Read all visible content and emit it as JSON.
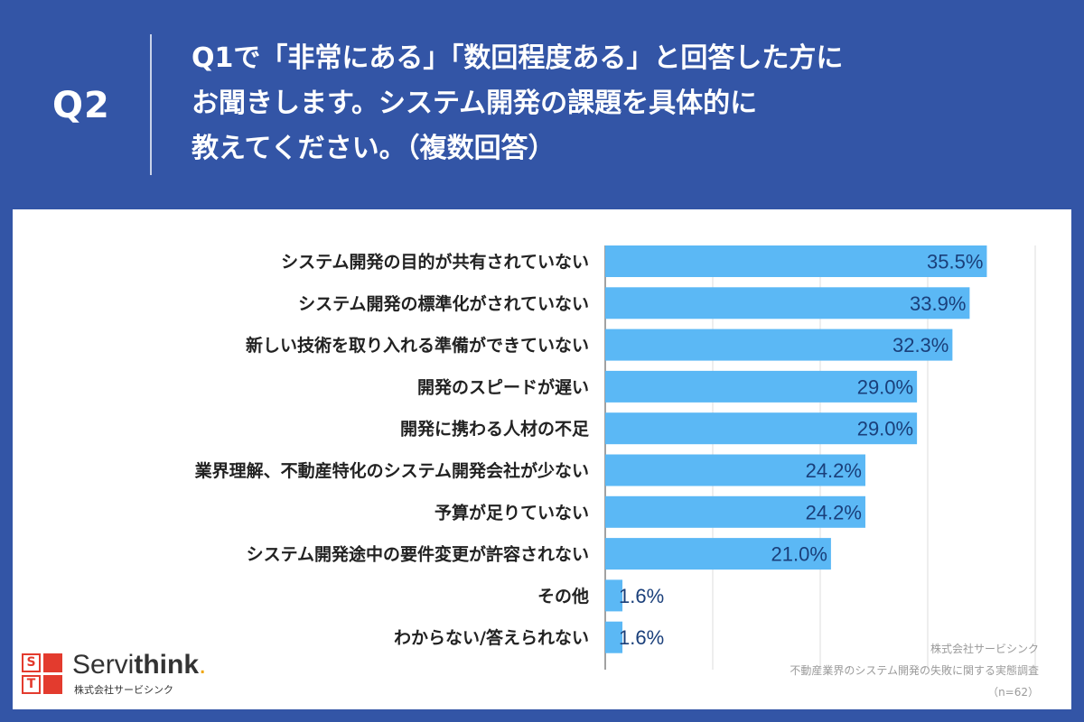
{
  "header": {
    "q_label": "Q2",
    "question_lines": [
      "Q1で「非常にある」「数回程度ある」と回答した方に",
      "お聞きします。システム開発の課題を具体的に",
      "教えてください。（複数回答）"
    ]
  },
  "chart_data": {
    "type": "bar",
    "orientation": "horizontal",
    "categories": [
      "システム開発の目的が共有されていない",
      "システム開発の標準化がされていない",
      "新しい技術を取り入れる準備ができていない",
      "開発のスピードが遅い",
      "開発に携わる人材の不足",
      "業界理解、不動産特化のシステム開発会社が少ない",
      "予算が足りていない",
      "システム開発途中の要件変更が許容されない",
      "その他",
      "わからない/答えられない"
    ],
    "values": [
      35.5,
      33.9,
      32.3,
      29.0,
      29.0,
      24.2,
      24.2,
      21.0,
      1.6,
      1.6
    ],
    "value_labels": [
      "35.5%",
      "33.9%",
      "32.3%",
      "29.0%",
      "29.0%",
      "24.2%",
      "24.2%",
      "21.0%",
      "1.6%",
      "1.6%"
    ],
    "xlim": [
      0,
      40
    ],
    "grid": true,
    "bar_color": "#5bb8f5",
    "label_color": "#1a3f7a"
  },
  "source": {
    "company": "株式会社サービシンク",
    "survey": "不動産業界のシステム開発の失敗に関する実態調査",
    "n": "（n=62）"
  },
  "logo": {
    "letters": [
      "S",
      "",
      "T",
      ""
    ],
    "name_prefix": "Servi",
    "name_suffix": "think",
    "dot": ".",
    "sub": "株式会社サービシンク"
  },
  "colors": {
    "header_bg": "#3355a6",
    "panel_bg": "#ffffff",
    "logo_red": "#e33b2e",
    "logo_dot": "#f0a500"
  }
}
